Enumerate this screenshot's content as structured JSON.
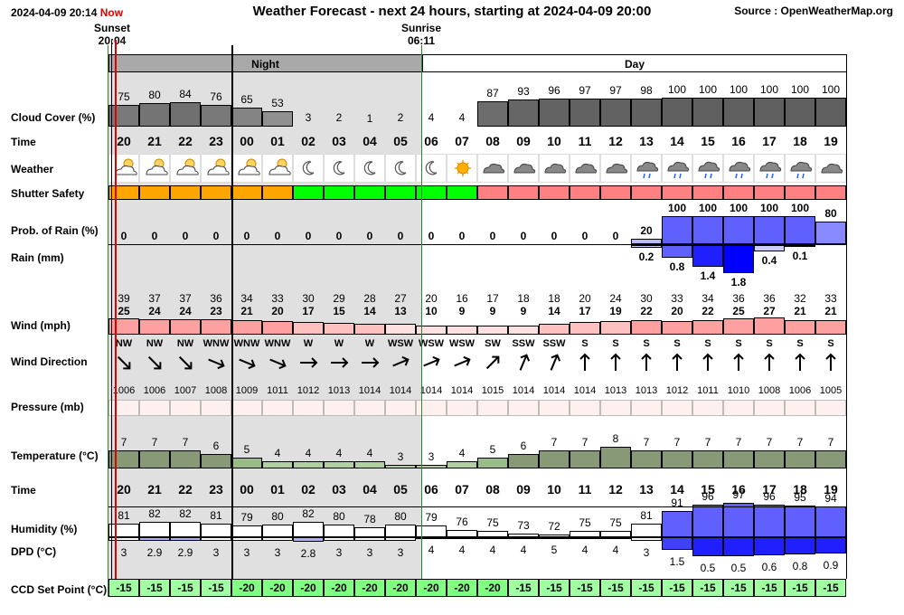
{
  "header": {
    "datetime": "2024-04-09 20:14",
    "now": "Now",
    "title": "Weather Forecast - next 24 hours, starting at 2024-04-09 20:00",
    "source": "Source : OpenWeatherMap.org",
    "sunset_label": "Sunset",
    "sunset_time": "20:04",
    "sunrise_label": "Sunrise",
    "sunrise_time": "06:11"
  },
  "bands": {
    "night": "Night",
    "day": "Day"
  },
  "labels": {
    "cloud": "Cloud Cover (%)",
    "time": "Time",
    "weather": "Weather",
    "shutter": "Shutter Safety",
    "prob_rain": "Prob. of Rain (%)",
    "rain": "Rain (mm)",
    "wind": "Wind (mph)",
    "wind_dir": "Wind Direction",
    "pressure": "Pressure (mb)",
    "temperature": "Temperature (°C)",
    "time2": "Time",
    "humidity": "Humidity (%)",
    "dpd": "DPD (°C)",
    "ccd": "CCD Set Point (°C)"
  },
  "hours": [
    "20",
    "21",
    "22",
    "23",
    "00",
    "01",
    "02",
    "03",
    "04",
    "05",
    "06",
    "07",
    "08",
    "09",
    "10",
    "11",
    "12",
    "13",
    "14",
    "15",
    "16",
    "17",
    "18",
    "19"
  ],
  "cloud_cover": [
    75,
    80,
    84,
    76,
    65,
    53,
    3,
    2,
    1,
    2,
    4,
    4,
    87,
    93,
    96,
    97,
    97,
    98,
    100,
    100,
    100,
    100,
    100,
    100
  ],
  "weather_icons": [
    "partly-cloudy-night-icon",
    "partly-cloudy-night-icon",
    "partly-cloudy-night-icon",
    "partly-cloudy-night-icon",
    "partly-cloudy-night-icon",
    "partly-cloudy-night-icon",
    "moon-icon",
    "moon-icon",
    "moon-icon",
    "moon-icon",
    "moon-icon",
    "sun-icon",
    "cloud-icon",
    "cloud-icon",
    "cloud-icon",
    "cloud-icon",
    "cloud-icon",
    "rain-cloud-icon",
    "rain-cloud-icon",
    "rain-cloud-icon",
    "rain-cloud-icon",
    "rain-cloud-icon",
    "rain-cloud-icon",
    "cloud-icon"
  ],
  "shutter_safety": [
    "amber",
    "amber",
    "amber",
    "amber",
    "amber",
    "amber",
    "green",
    "green",
    "green",
    "green",
    "green",
    "green",
    "red",
    "red",
    "red",
    "red",
    "red",
    "red",
    "red",
    "red",
    "red",
    "red",
    "red",
    "red"
  ],
  "shutter_colors": {
    "amber": "#ffa500",
    "green": "#00ff00",
    "red": "#ff8080"
  },
  "prob_rain": [
    0,
    0,
    0,
    0,
    0,
    0,
    0,
    0,
    0,
    0,
    0,
    0,
    0,
    0,
    0,
    0,
    0,
    20,
    100,
    100,
    100,
    100,
    100,
    80
  ],
  "rain_mm": [
    "",
    "",
    "",
    "",
    "",
    "",
    "",
    "",
    "",
    "",
    "",
    "",
    "",
    "",
    "",
    "",
    "",
    "0.2",
    "0.8",
    "1.4",
    "1.8",
    "0.4",
    "0.1",
    ""
  ],
  "wind_gust": [
    39,
    37,
    37,
    36,
    34,
    33,
    30,
    29,
    28,
    27,
    20,
    16,
    17,
    18,
    18,
    20,
    24,
    30,
    33,
    34,
    36,
    36,
    32,
    33
  ],
  "wind_speed": [
    25,
    24,
    24,
    23,
    21,
    20,
    17,
    15,
    14,
    13,
    10,
    9,
    9,
    9,
    14,
    17,
    19,
    22,
    20,
    22,
    25,
    27,
    21,
    21
  ],
  "wind_dir": [
    "NW",
    "NW",
    "NW",
    "WNW",
    "WNW",
    "WNW",
    "W",
    "W",
    "W",
    "WSW",
    "WSW",
    "WSW",
    "SW",
    "SSW",
    "SSW",
    "S",
    "S",
    "S",
    "S",
    "S",
    "S",
    "S",
    "S",
    "S"
  ],
  "pressure": [
    1006,
    1006,
    1007,
    1008,
    1009,
    1011,
    1012,
    1013,
    1014,
    1014,
    1014,
    1014,
    1015,
    1014,
    1014,
    1014,
    1013,
    1013,
    1012,
    1011,
    1010,
    1008,
    1006,
    1005
  ],
  "temperature": [
    7,
    7,
    7,
    6,
    5,
    4,
    4,
    4,
    4,
    3,
    3,
    4,
    5,
    6,
    7,
    7,
    8,
    7,
    7,
    7,
    7,
    7,
    7,
    7
  ],
  "humidity": [
    81,
    82,
    82,
    81,
    79,
    80,
    82,
    80,
    78,
    80,
    79,
    76,
    75,
    73,
    72,
    75,
    75,
    81,
    91,
    96,
    97,
    96,
    95,
    94
  ],
  "dpd": [
    3,
    2.9,
    2.9,
    3,
    3,
    3,
    2.8,
    3,
    3,
    3,
    4,
    4,
    4,
    4,
    5,
    4,
    4,
    3,
    1.5,
    0.5,
    0.5,
    0.6,
    0.8,
    0.9
  ],
  "ccd_set_point": [
    -15,
    -15,
    -15,
    -15,
    -20,
    -20,
    -20,
    -20,
    -20,
    -20,
    -20,
    -20,
    -20,
    -15,
    -15,
    -15,
    -15,
    -15,
    -15,
    -15,
    -15,
    -15,
    -15,
    -15
  ]
}
